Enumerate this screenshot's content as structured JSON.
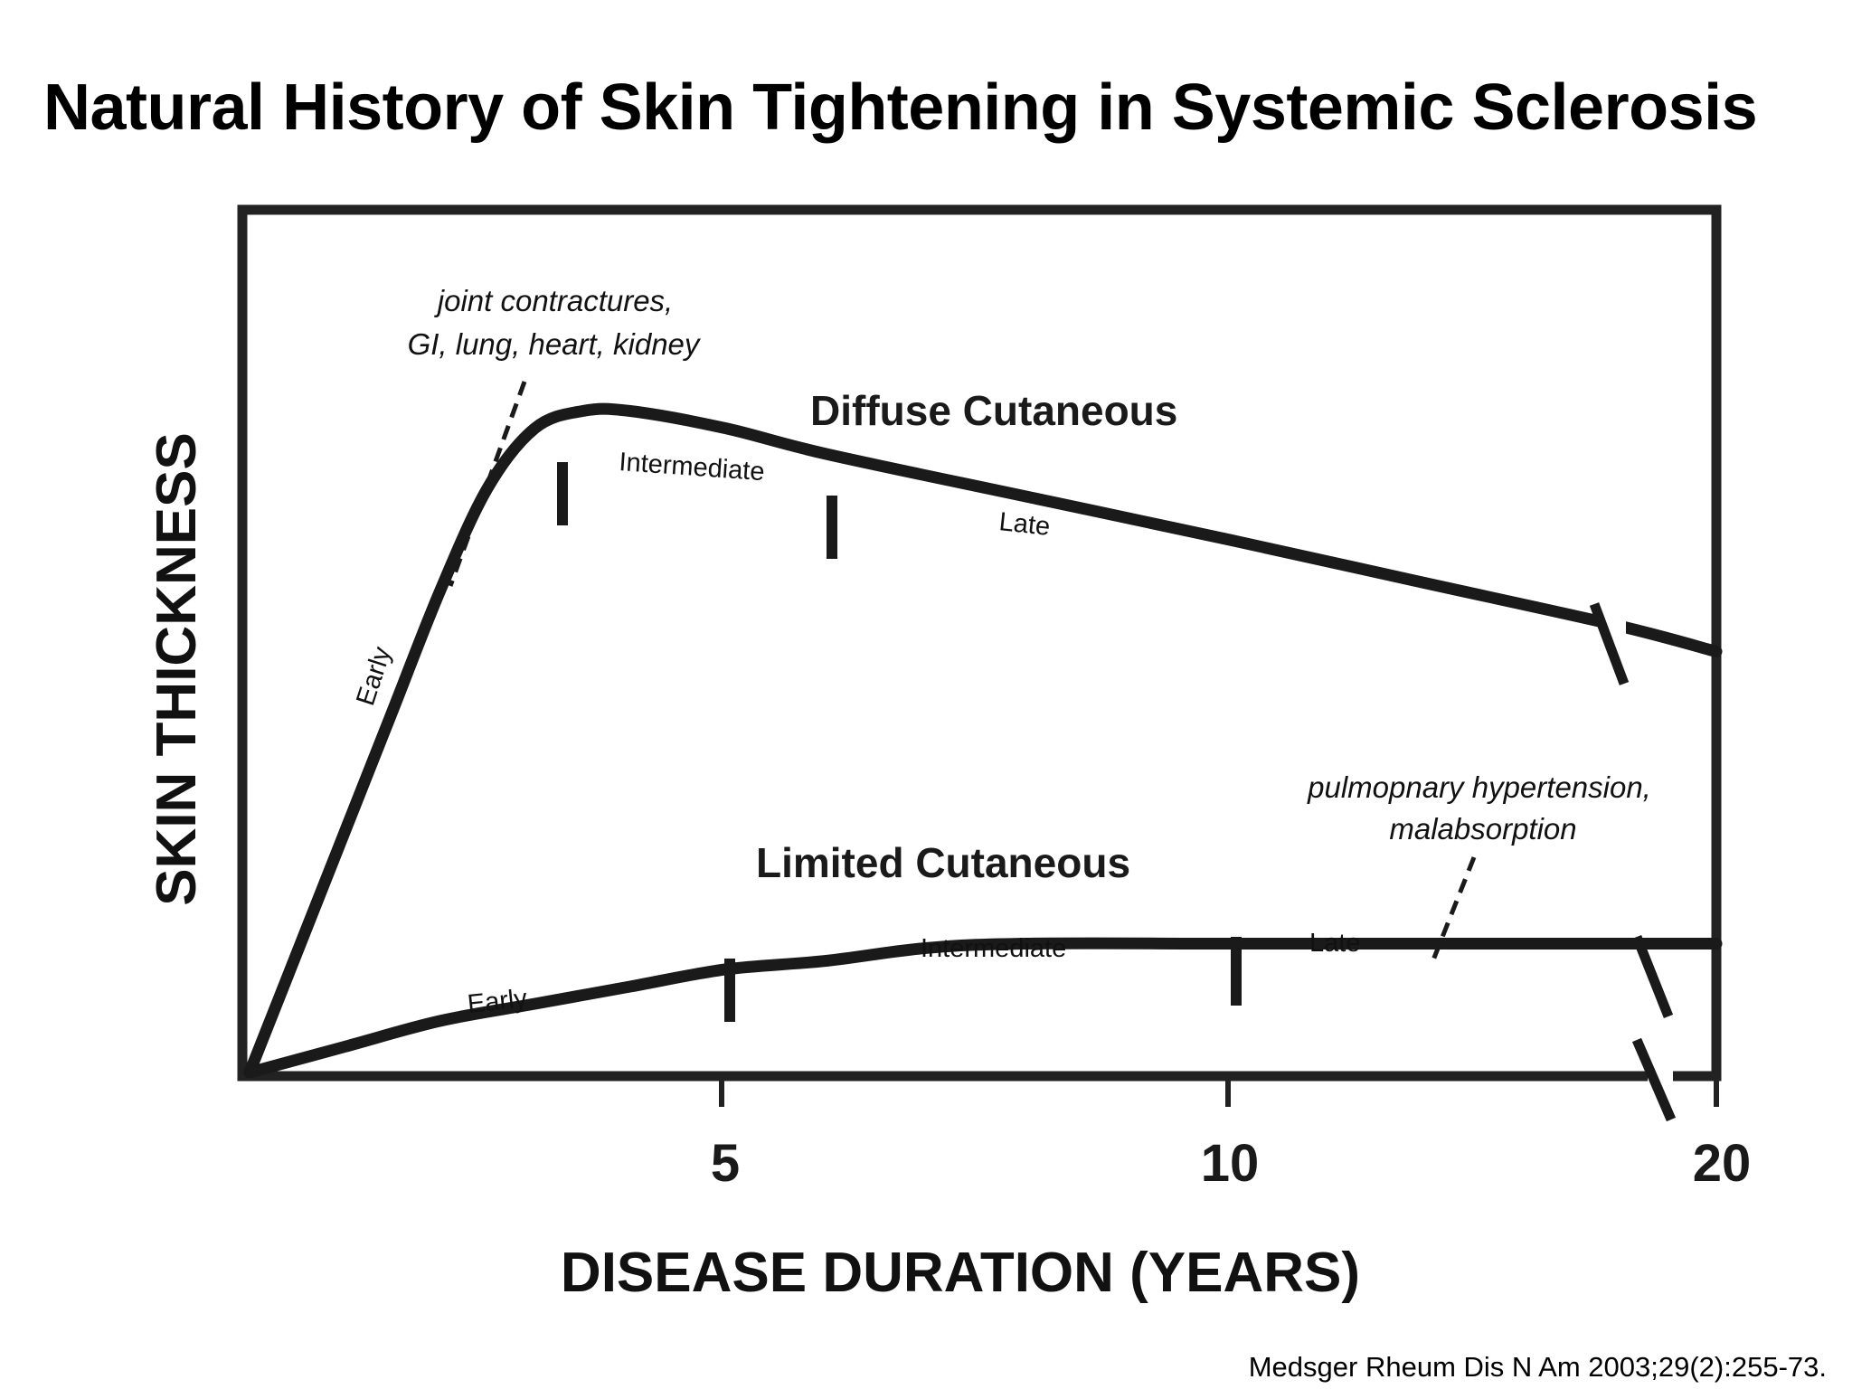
{
  "slide": {
    "title": "Natural History of Skin Tightening in Systemic Sclerosis",
    "citation": "Medsger Rheum Dis N Am 2003;29(2):255-73."
  },
  "chart_data": {
    "type": "line",
    "title": "",
    "xlabel": "DISEASE DURATION (YEARS)",
    "ylabel": "SKIN THICKNESS",
    "x_ticks": [
      "5",
      "10",
      "20"
    ],
    "axis_break": "between 10 and 20 years",
    "grid": false,
    "series": [
      {
        "name": "Diffuse Cutaneous",
        "phases": [
          "Early",
          "Intermediate",
          "Late"
        ],
        "phase_boundaries_years": [
          3.2,
          5.8
        ],
        "annotation": "joint contractures,\nGI, lung, heart, kidney",
        "points_years_relative": [
          [
            0,
            0.0
          ],
          [
            0.5,
            0.14
          ],
          [
            1,
            0.28
          ],
          [
            1.5,
            0.42
          ],
          [
            2,
            0.56
          ],
          [
            2.5,
            0.68
          ],
          [
            3,
            0.75
          ],
          [
            3.5,
            0.77
          ],
          [
            4,
            0.77
          ],
          [
            5,
            0.75
          ],
          [
            6,
            0.72
          ],
          [
            8,
            0.67
          ],
          [
            10,
            0.62
          ],
          [
            12,
            0.57
          ],
          [
            14,
            0.52
          ],
          [
            20,
            0.49
          ]
        ]
      },
      {
        "name": "Limited Cutaneous",
        "phases": [
          "Early",
          "Intermediate",
          "Late"
        ],
        "phase_boundaries_years": [
          5,
          10
        ],
        "annotation": "pulmopnary hypertension,\nmalabsorption",
        "points_years_relative": [
          [
            0,
            0.0
          ],
          [
            1,
            0.03
          ],
          [
            2,
            0.06
          ],
          [
            3,
            0.08
          ],
          [
            4,
            0.1
          ],
          [
            5,
            0.12
          ],
          [
            6,
            0.13
          ],
          [
            7,
            0.145
          ],
          [
            8,
            0.15
          ],
          [
            10,
            0.15
          ],
          [
            12,
            0.15
          ],
          [
            20,
            0.15
          ]
        ]
      }
    ]
  }
}
